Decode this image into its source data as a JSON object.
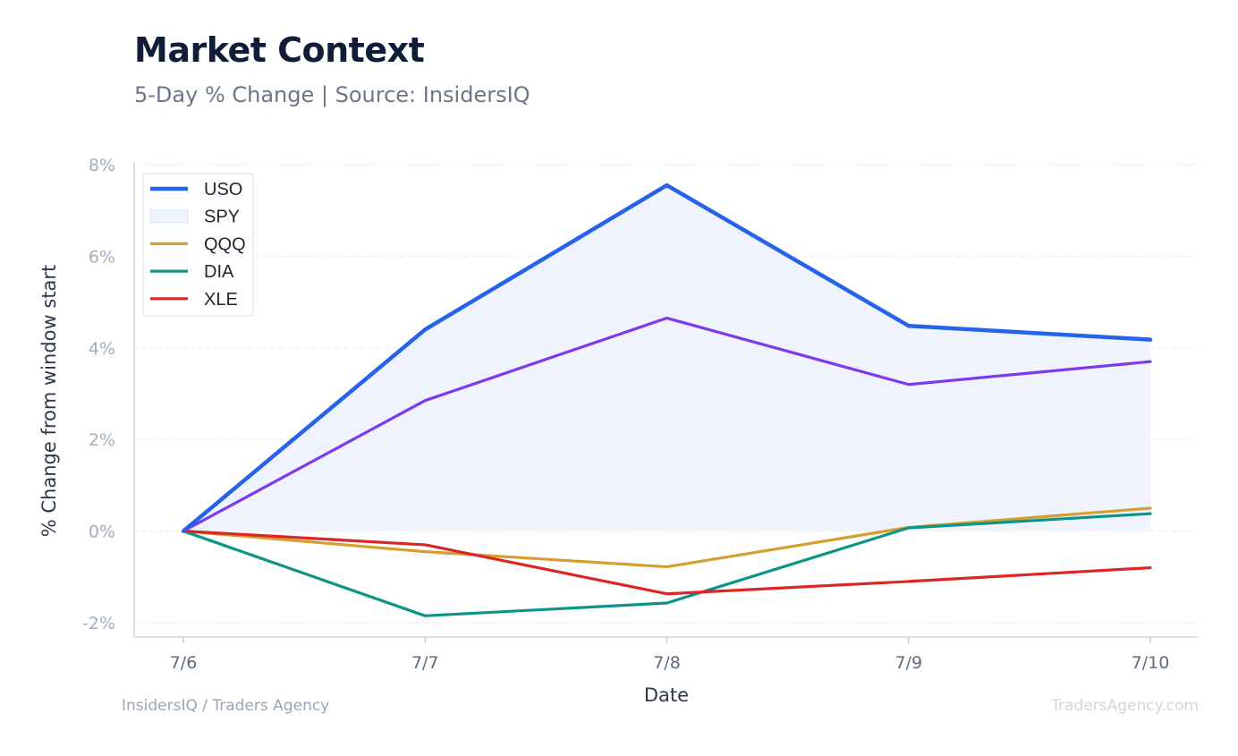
{
  "header": {
    "title": "Market Context",
    "subtitle": "5-Day % Change | Source: InsidersIQ"
  },
  "footer": {
    "left": "InsidersIQ / Traders Agency",
    "right": "TradersAgency.com"
  },
  "chart_data": {
    "type": "line",
    "xlabel": "Date",
    "ylabel": "% Change from window start",
    "categories": [
      "7/6",
      "7/7",
      "7/8",
      "7/9",
      "7/10"
    ],
    "ylim": [
      -2.3,
      8.2
    ],
    "yticks": [
      -2,
      0,
      2,
      4,
      6,
      8
    ],
    "ytick_labels": [
      "-2%",
      "0%",
      "2%",
      "4%",
      "6%",
      "8%"
    ],
    "grid": true,
    "legend_position": "top-left",
    "series": [
      {
        "name": "USO",
        "color": "#2563eb",
        "values": [
          0,
          4.4,
          7.55,
          4.48,
          4.18
        ]
      },
      {
        "name": "SPY",
        "color": "#7c3aed",
        "fill": "#eef3fd",
        "values": [
          0,
          2.85,
          4.65,
          3.2,
          3.7
        ]
      },
      {
        "name": "QQQ",
        "color": "#d69e2e",
        "values": [
          0,
          -0.45,
          -0.78,
          0.08,
          0.5
        ]
      },
      {
        "name": "DIA",
        "color": "#0d9488",
        "values": [
          0,
          -1.85,
          -1.57,
          0.07,
          0.38
        ]
      },
      {
        "name": "XLE",
        "color": "#dc2626",
        "values": [
          0,
          -0.3,
          -1.37,
          -1.1,
          -0.8
        ]
      }
    ]
  }
}
